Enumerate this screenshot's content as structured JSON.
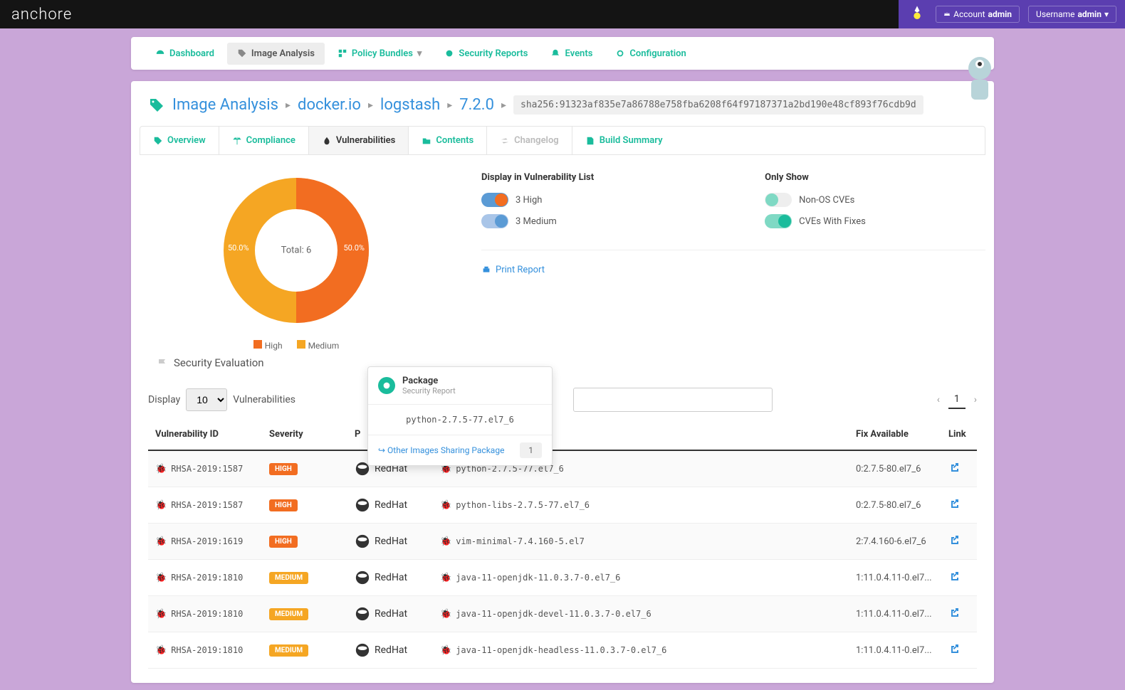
{
  "brand": "anchore",
  "topbar": {
    "account_label": "Account",
    "account_value": "admin",
    "username_label": "Username",
    "username_value": "admin"
  },
  "nav": {
    "dashboard": "Dashboard",
    "image_analysis": "Image Analysis",
    "policy_bundles": "Policy Bundles",
    "security_reports": "Security Reports",
    "events": "Events",
    "configuration": "Configuration"
  },
  "breadcrumb": {
    "root": "Image Analysis",
    "p1": "docker.io",
    "p2": "logstash",
    "p3": "7.2.0",
    "hash": "sha256:91323af835e7a86788e758fba6208f64f97187371a2bd190e48cf893f76cdb9d"
  },
  "tabs": {
    "overview": "Overview",
    "compliance": "Compliance",
    "vulnerabilities": "Vulnerabilities",
    "contents": "Contents",
    "changelog": "Changelog",
    "build_summary": "Build Summary"
  },
  "chart": {
    "type": "donut",
    "center_label": "Total: 6",
    "slices": [
      {
        "label": "High",
        "value": 3,
        "pct": "50.0%",
        "color": "#f26d21"
      },
      {
        "label": "Medium",
        "value": 3,
        "pct": "50.0%",
        "color": "#f5a623"
      }
    ],
    "legend": [
      "High",
      "Medium"
    ]
  },
  "filters": {
    "display_heading": "Display in Vulnerability List",
    "only_show_heading": "Only Show",
    "high": {
      "label": "3 High",
      "on": true,
      "track": "#5b9bd5",
      "knob": "#f26d21"
    },
    "medium": {
      "label": "3 Medium",
      "on": true,
      "track": "#a9c5e8",
      "knob": "#5b9bd5"
    },
    "nonos": {
      "label": "Non-OS CVEs",
      "on": false,
      "track": "#eee",
      "knob": "#7fd9c4"
    },
    "fixes": {
      "label": "CVEs With Fixes",
      "on": true,
      "track": "#7fd9c4",
      "knob": "#1abc9c"
    }
  },
  "print_label": "Print Report",
  "sec_eval": "Security Evaluation",
  "table": {
    "display_label": "Display",
    "per_page": "10",
    "unit_label": "Vulnerabilities",
    "page": "1",
    "columns": {
      "vid": "Vulnerability ID",
      "severity": "Severity",
      "vendor": "P",
      "package": " ",
      "fix": "Fix Available",
      "link": "Link"
    },
    "rows": [
      {
        "vid": "RHSA-2019:1587",
        "sev": "HIGH",
        "sev_color": "#f26d21",
        "vendor": "RedHat",
        "pkg": "python-2.7.5-77.el7_6",
        "fix": "0:2.7.5-80.el7_6"
      },
      {
        "vid": "RHSA-2019:1587",
        "sev": "HIGH",
        "sev_color": "#f26d21",
        "vendor": "RedHat",
        "pkg": "python-libs-2.7.5-77.el7_6",
        "fix": "0:2.7.5-80.el7_6"
      },
      {
        "vid": "RHSA-2019:1619",
        "sev": "HIGH",
        "sev_color": "#f26d21",
        "vendor": "RedHat",
        "pkg": "vim-minimal-7.4.160-5.el7",
        "fix": "2:7.4.160-6.el7_6"
      },
      {
        "vid": "RHSA-2019:1810",
        "sev": "MEDIUM",
        "sev_color": "#f5a623",
        "vendor": "RedHat",
        "pkg": "java-11-openjdk-11.0.3.7-0.el7_6",
        "fix": "1:11.0.4.11-0.el7..."
      },
      {
        "vid": "RHSA-2019:1810",
        "sev": "MEDIUM",
        "sev_color": "#f5a623",
        "vendor": "RedHat",
        "pkg": "java-11-openjdk-devel-11.0.3.7-0.el7_6",
        "fix": "1:11.0.4.11-0.el7..."
      },
      {
        "vid": "RHSA-2019:1810",
        "sev": "MEDIUM",
        "sev_color": "#f5a623",
        "vendor": "RedHat",
        "pkg": "java-11-openjdk-headless-11.0.3.7-0.el7_6",
        "fix": "1:11.0.4.11-0.el7..."
      }
    ]
  },
  "popover": {
    "title": "Package",
    "subtitle": "Security Report",
    "body": "python-2.7.5-77.el7_6",
    "link_label": "Other Images Sharing Package",
    "count": "1"
  },
  "colors": {
    "teal": "#1abc9c",
    "blue": "#3490dc",
    "high": "#f26d21",
    "medium": "#f5a623"
  }
}
